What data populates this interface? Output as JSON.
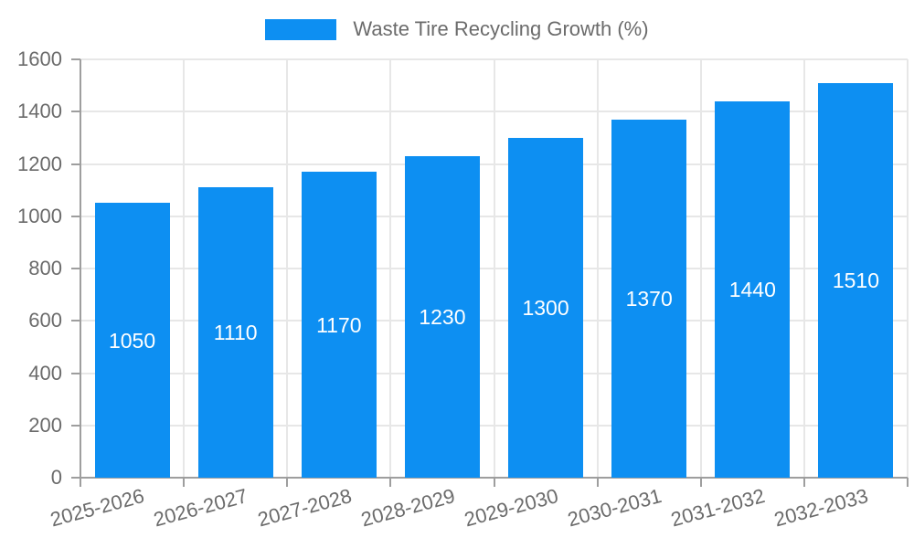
{
  "chart_data": {
    "type": "bar",
    "title": "",
    "legend_label": "Waste Tire Recycling Growth (%)",
    "legend_position": "top-center",
    "categories": [
      "2025-2026",
      "2026-2027",
      "2027-2028",
      "2028-2029",
      "2029-2030",
      "2030-2031",
      "2031-2032",
      "2032-2033"
    ],
    "series": [
      {
        "name": "Waste Tire Recycling Growth (%)",
        "values": [
          1050,
          1110,
          1170,
          1230,
          1300,
          1370,
          1440,
          1510
        ]
      }
    ],
    "data_labels": [
      "1050",
      "1110",
      "1170",
      "1230",
      "1300",
      "1370",
      "1440",
      "1510"
    ],
    "data_label_position": "inside-center",
    "xlabel": "",
    "ylabel": "",
    "ylim": [
      0,
      1600
    ],
    "yticks": [
      0,
      200,
      400,
      600,
      800,
      1000,
      1200,
      1400,
      1600
    ],
    "grid": true,
    "x_label_rotation_deg": -15,
    "colors": {
      "bar": "#0d8ff2",
      "bar_value_text": "#ffffff",
      "axis_text": "#6b6b6b",
      "axis_line": "#9e9e9e",
      "gridline": "#e7e7e7",
      "background": "#ffffff"
    }
  }
}
